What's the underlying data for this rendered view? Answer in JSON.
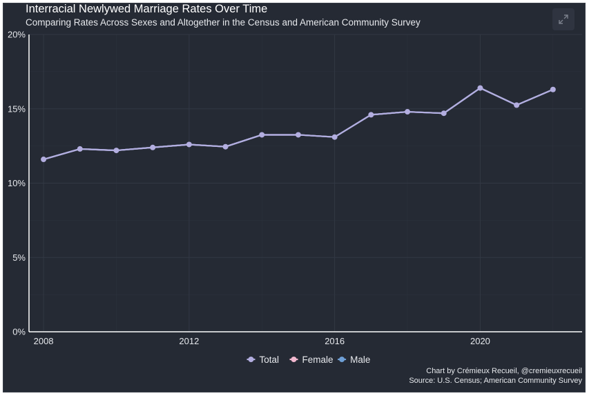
{
  "chart": {
    "title": "Interracial Newlywed Marriage Rates Over Time",
    "subtitle": "Comparing Rates Across Sexes and Altogether in the Census and American Community Survey",
    "caption_line1": "Chart by Crémieux Recueil, @cremieuxrecueil",
    "caption_line2": "Source: U.S. Census; American Community Survey",
    "expand_icon": "expand-icon"
  },
  "colors": {
    "background": "#252a34",
    "grid": "#323844",
    "axis": "#ffffff",
    "text": "#e6e8ec",
    "total": "#b3aee0",
    "female": "#f2b8cf",
    "male": "#6e9fd6"
  },
  "chart_data": {
    "type": "line",
    "title": "Interracial Newlywed Marriage Rates Over Time",
    "subtitle": "Comparing Rates Across Sexes and Altogether in the Census and American Community Survey",
    "xlabel": "",
    "ylabel": "",
    "x": [
      2008,
      2009,
      2010,
      2011,
      2012,
      2013,
      2014,
      2015,
      2016,
      2017,
      2018,
      2019,
      2020,
      2021,
      2022
    ],
    "series": [
      {
        "name": "Total",
        "color": "#b3aee0",
        "values": [
          11.6,
          12.3,
          12.2,
          12.4,
          12.6,
          12.45,
          13.25,
          13.25,
          13.1,
          14.6,
          14.8,
          14.7,
          16.4,
          15.25,
          16.3
        ]
      },
      {
        "name": "Female",
        "color": "#f2b8cf",
        "values": [
          11.6,
          12.3,
          12.2,
          12.4,
          12.6,
          12.45,
          13.25,
          13.25,
          13.1,
          14.6,
          14.8,
          14.7,
          16.4,
          15.25,
          16.3
        ]
      },
      {
        "name": "Male",
        "color": "#6e9fd6",
        "values": [
          11.6,
          12.3,
          12.2,
          12.4,
          12.6,
          12.45,
          13.25,
          13.25,
          13.1,
          14.6,
          14.8,
          14.7,
          16.4,
          15.25,
          16.3
        ]
      }
    ],
    "xticks": [
      2008,
      2012,
      2016,
      2020
    ],
    "xtick_labels": [
      "2008",
      "2012",
      "2016",
      "2020"
    ],
    "yticks": [
      0,
      5,
      10,
      15,
      20
    ],
    "ytick_labels": [
      "0%",
      "5%",
      "10%",
      "15%",
      "20%"
    ],
    "xlim": [
      2007.6,
      2022.8
    ],
    "ylim": [
      0,
      20
    ],
    "grid": true,
    "legend": {
      "position": "bottom",
      "entries": [
        "Total",
        "Female",
        "Male"
      ]
    }
  }
}
